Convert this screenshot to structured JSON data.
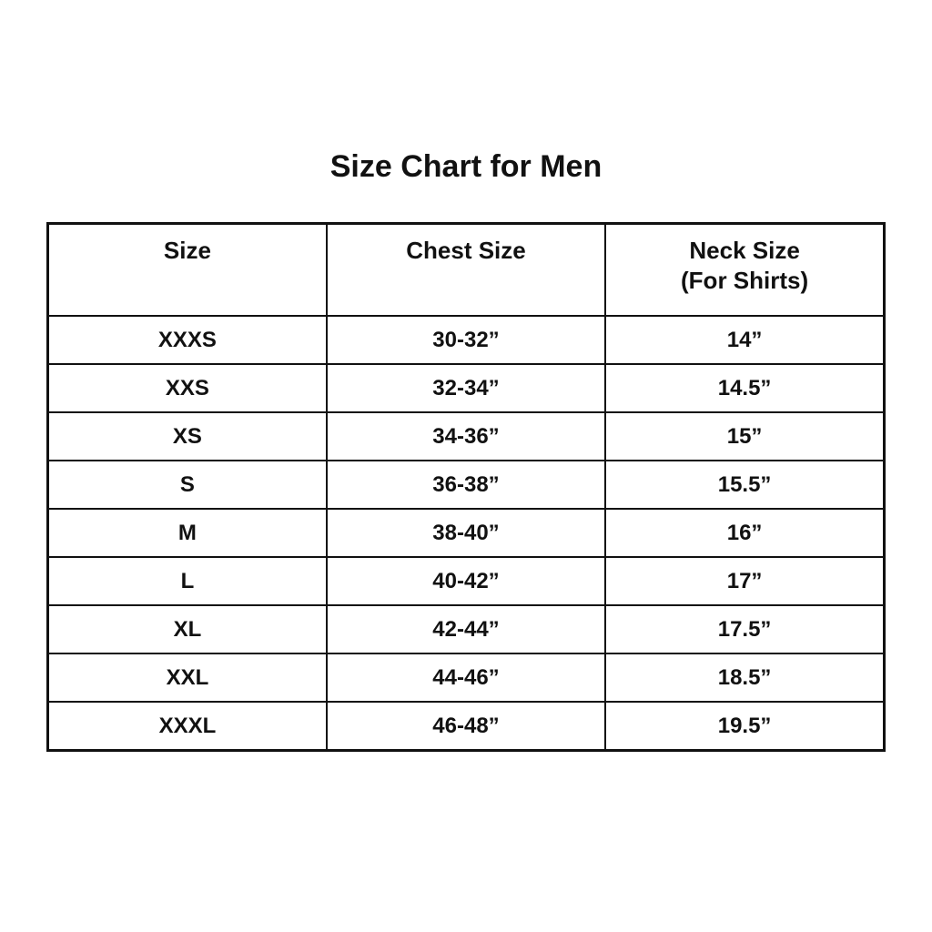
{
  "title": "Size Chart for Men",
  "table": {
    "headers": [
      {
        "label": "Size"
      },
      {
        "label": "Chest Size"
      },
      {
        "label": "Neck Size",
        "sublabel": "(For Shirts)"
      }
    ],
    "rows": [
      {
        "size": "XXXS",
        "chest": "30-32”",
        "neck": "14”"
      },
      {
        "size": "XXS",
        "chest": "32-34”",
        "neck": "14.5”"
      },
      {
        "size": "XS",
        "chest": "34-36”",
        "neck": "15”"
      },
      {
        "size": "S",
        "chest": "36-38”",
        "neck": "15.5”"
      },
      {
        "size": "M",
        "chest": "38-40”",
        "neck": "16”"
      },
      {
        "size": "L",
        "chest": "40-42”",
        "neck": "17”"
      },
      {
        "size": "XL",
        "chest": "42-44”",
        "neck": "17.5”"
      },
      {
        "size": "XXL",
        "chest": "44-46”",
        "neck": "18.5”"
      },
      {
        "size": "XXXL",
        "chest": "46-48”",
        "neck": "19.5”"
      }
    ]
  },
  "colors": {
    "background": "#ffffff",
    "text": "#111111",
    "border": "#111111"
  }
}
